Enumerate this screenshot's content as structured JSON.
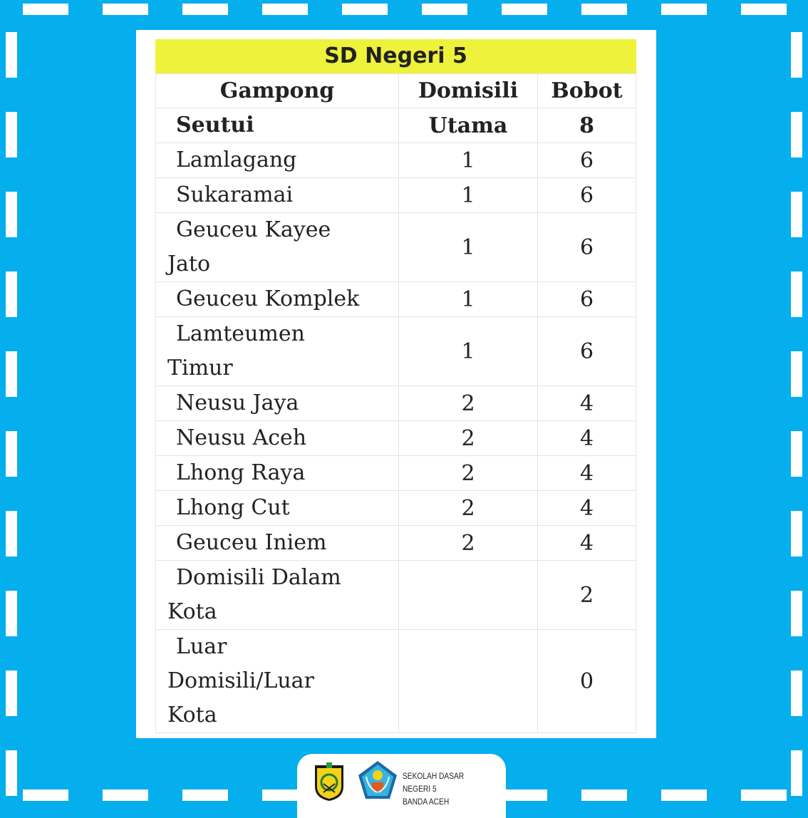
{
  "table": {
    "title": "SD Negeri 5",
    "headers": [
      "Gampong",
      "Domisili",
      "Bobot"
    ],
    "rows": [
      {
        "gampong": [
          "Seutui"
        ],
        "domisili": "Utama",
        "bobot": "8",
        "bold": true
      },
      {
        "gampong": [
          "Lamlagang"
        ],
        "domisili": "1",
        "bobot": "6"
      },
      {
        "gampong": [
          "Sukaramai"
        ],
        "domisili": "1",
        "bobot": "6"
      },
      {
        "gampong": [
          "Geuceu Kayee",
          "Jato"
        ],
        "domisili": "1",
        "bobot": "6"
      },
      {
        "gampong": [
          "Geuceu Komplek"
        ],
        "domisili": "1",
        "bobot": "6"
      },
      {
        "gampong": [
          "Lamteumen",
          "Timur"
        ],
        "domisili": "1",
        "bobot": "6"
      },
      {
        "gampong": [
          "Neusu Jaya"
        ],
        "domisili": "2",
        "bobot": "4"
      },
      {
        "gampong": [
          "Neusu Aceh"
        ],
        "domisili": "2",
        "bobot": "4"
      },
      {
        "gampong": [
          "Lhong Raya"
        ],
        "domisili": "2",
        "bobot": "4"
      },
      {
        "gampong": [
          "Lhong Cut"
        ],
        "domisili": "2",
        "bobot": "4"
      },
      {
        "gampong": [
          "Geuceu Iniem"
        ],
        "domisili": "2",
        "bobot": "4"
      },
      {
        "gampong": [
          "Domisili Dalam",
          "Kota"
        ],
        "domisili": "",
        "bobot": "2"
      },
      {
        "gampong": [
          "Luar",
          "Domisili/Luar",
          "Kota"
        ],
        "domisili": "",
        "bobot": "0"
      }
    ]
  },
  "footer": {
    "school_line1": "SEKOLAH DASAR NEGERI 5",
    "school_line2": "BANDA ACEH",
    "logos": [
      "banda-aceh-city-emblem-icon",
      "tut-wuri-handayani-emblem-icon"
    ]
  },
  "colors": {
    "background": "#05aeec",
    "title_highlight": "#eef23a",
    "border_dash": "#ffffff"
  }
}
